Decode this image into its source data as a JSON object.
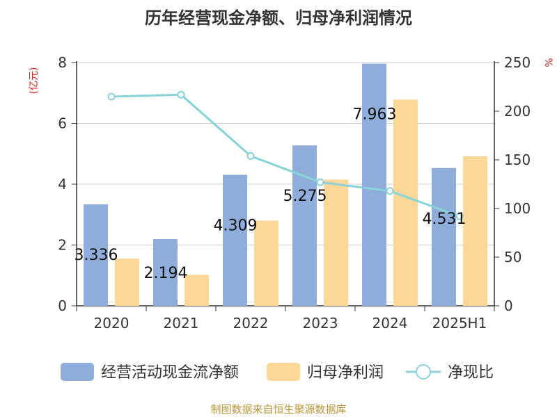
{
  "chart_data": {
    "type": "bar",
    "title": "历年经营现金净额、归母净利润情况",
    "categories": [
      "2020",
      "2021",
      "2022",
      "2023",
      "2024",
      "2025H1"
    ],
    "series": [
      {
        "name": "经营活动现金流净额",
        "type": "bar",
        "axis": "left",
        "color": "#8eaddb",
        "values": [
          3.336,
          2.194,
          4.309,
          5.275,
          7.963,
          4.531
        ],
        "labels": [
          "3.336",
          "2.194",
          "4.309",
          "5.275",
          "7.963",
          "4.531"
        ]
      },
      {
        "name": "归母净利润",
        "type": "bar",
        "axis": "left",
        "color": "#fdd797",
        "values": [
          1.55,
          1.02,
          2.8,
          4.15,
          6.78,
          4.92
        ]
      },
      {
        "name": "净现比",
        "type": "line",
        "axis": "right",
        "color": "#87d3d8",
        "values": [
          215,
          217,
          154,
          127,
          118,
          92
        ]
      }
    ],
    "yLeft": {
      "label": "(亿元)",
      "ticks": [
        "0",
        "2",
        "4",
        "6",
        "8"
      ],
      "min": 0,
      "max": 8
    },
    "yRight": {
      "label": "%",
      "ticks": [
        "0",
        "50",
        "100",
        "150",
        "200",
        "250"
      ],
      "min": 0,
      "max": 250
    },
    "grid": true,
    "legend_position": "bottom",
    "source": "制图数据来自恒生聚源数据库"
  }
}
